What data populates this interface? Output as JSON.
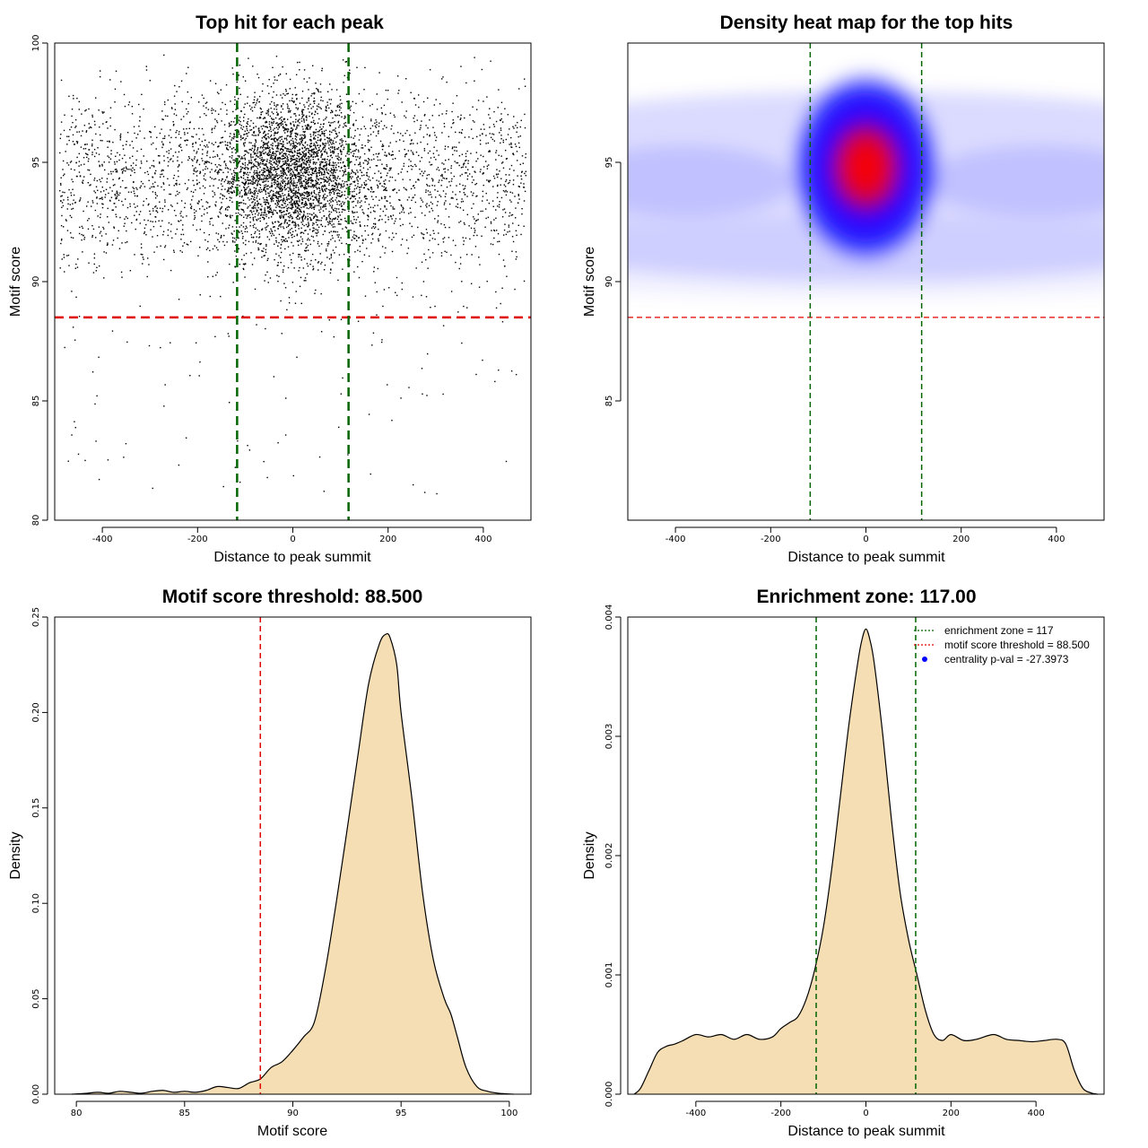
{
  "colors": {
    "threshold_line": "#e00000",
    "zone_line": "#006400",
    "density_fill": "#f5deb3",
    "heat_low": "#ffffff",
    "heat_mid": "#0000ff",
    "heat_high": "#ff0000",
    "legend_dot": "#0000ff"
  },
  "chart_data": [
    {
      "type": "scatter",
      "title": "Top hit for each peak",
      "xlabel": "Distance to peak summit",
      "ylabel": "Motif score",
      "xlim": [
        -500,
        500
      ],
      "ylim": [
        80,
        100
      ],
      "xticks": [
        -400,
        -200,
        0,
        200,
        400
      ],
      "yticks": [
        80,
        85,
        90,
        95,
        100
      ],
      "grid": false,
      "hlines": [
        88.5
      ],
      "vlines": [
        -117,
        117
      ],
      "points_description_model": {
        "background_count": 2600,
        "central_count": 2900,
        "central_center_x": 0,
        "central_sd_x": 75,
        "score_center": 94.5,
        "score_sd": 1.6,
        "outlier_count": 90
      }
    },
    {
      "type": "heatmap",
      "title": "Density heat map for the top hits",
      "xlabel": "Distance to peak summit",
      "ylabel": "Motif score",
      "xlim": [
        -500,
        500
      ],
      "ylim": [
        80,
        100
      ],
      "xticks": [
        -400,
        -200,
        0,
        200,
        400
      ],
      "yticks": [
        85,
        90,
        95
      ],
      "grid": false,
      "hlines": [
        88.5
      ],
      "vlines": [
        -117,
        117
      ],
      "peak": {
        "x": 0,
        "y": 94.8
      }
    },
    {
      "type": "area",
      "title": "Motif score threshold: 88.500",
      "xlabel": "Motif score",
      "ylabel": "Density",
      "xlim": [
        79,
        101
      ],
      "ylim": [
        0,
        0.25
      ],
      "xticks": [
        80,
        85,
        90,
        95,
        100
      ],
      "yticks": [
        0.0,
        0.05,
        0.1,
        0.15,
        0.2,
        0.25
      ],
      "ytick_labels": [
        "0.00",
        "0.05",
        "0.10",
        "0.15",
        "0.20",
        "0.25"
      ],
      "grid": false,
      "vlines": [
        88.5
      ],
      "x": [
        79.8,
        80.5,
        81.0,
        81.5,
        82.0,
        82.5,
        83.0,
        83.5,
        84.0,
        84.5,
        85.0,
        85.5,
        86.0,
        86.5,
        87.0,
        87.5,
        88.0,
        88.5,
        89.0,
        89.5,
        90.0,
        90.5,
        91.0,
        91.5,
        92.0,
        92.5,
        93.0,
        93.5,
        94.0,
        94.3,
        94.5,
        94.8,
        95.0,
        95.5,
        96.0,
        96.5,
        97.0,
        97.3,
        97.6,
        98.0,
        98.5,
        99.0,
        99.5,
        100.2
      ],
      "y": [
        0.0,
        0.0005,
        0.001,
        0.0005,
        0.0015,
        0.001,
        0.0005,
        0.0015,
        0.002,
        0.001,
        0.0015,
        0.001,
        0.002,
        0.004,
        0.0035,
        0.003,
        0.006,
        0.008,
        0.014,
        0.017,
        0.023,
        0.03,
        0.038,
        0.065,
        0.1,
        0.138,
        0.177,
        0.215,
        0.236,
        0.241,
        0.239,
        0.225,
        0.2,
        0.155,
        0.105,
        0.07,
        0.05,
        0.042,
        0.03,
        0.014,
        0.004,
        0.0015,
        0.0005,
        0.0
      ]
    },
    {
      "type": "area",
      "title": "Enrichment zone: 117.00",
      "xlabel": "Distance to peak summit",
      "ylabel": "Density",
      "xlim": [
        -560,
        560
      ],
      "ylim": [
        0,
        0.004
      ],
      "xticks": [
        -400,
        -200,
        0,
        200,
        400
      ],
      "yticks": [
        0.0,
        0.001,
        0.002,
        0.003,
        0.004
      ],
      "ytick_labels": [
        "0.000",
        "0.001",
        "0.002",
        "0.003",
        "0.004"
      ],
      "grid": false,
      "vlines": [
        -117,
        117
      ],
      "legend_position": "top-right",
      "legend": [
        {
          "label": "enrichment zone = 117",
          "style": "dotted-line",
          "color": "#006400"
        },
        {
          "label": "motif score threshold = 88.500",
          "style": "dotted-line",
          "color": "#e00000"
        },
        {
          "label": "centrality p-val = -27.3973",
          "style": "dot",
          "color": "#0000ff"
        }
      ],
      "x": [
        -545,
        -530,
        -510,
        -490,
        -470,
        -450,
        -430,
        -400,
        -370,
        -340,
        -310,
        -280,
        -250,
        -220,
        -200,
        -180,
        -160,
        -140,
        -120,
        -100,
        -80,
        -60,
        -40,
        -20,
        -10,
        0,
        10,
        20,
        40,
        60,
        80,
        100,
        120,
        140,
        160,
        180,
        200,
        230,
        260,
        300,
        330,
        360,
        390,
        420,
        450,
        470,
        490,
        510,
        530,
        545
      ],
      "y": [
        0.0,
        5e-05,
        0.0002,
        0.00035,
        0.0004,
        0.00042,
        0.00045,
        0.0005,
        0.00048,
        0.0005,
        0.00046,
        0.0005,
        0.00046,
        0.00048,
        0.00055,
        0.0006,
        0.00065,
        0.0008,
        0.00105,
        0.0014,
        0.0019,
        0.0025,
        0.0031,
        0.0036,
        0.0038,
        0.0039,
        0.0038,
        0.0036,
        0.003,
        0.0023,
        0.0017,
        0.0013,
        0.001,
        0.0007,
        0.0005,
        0.00045,
        0.0005,
        0.00045,
        0.00046,
        0.0005,
        0.00046,
        0.00045,
        0.00044,
        0.00045,
        0.00046,
        0.00042,
        0.0002,
        5e-05,
        1e-05,
        0.0
      ]
    }
  ]
}
